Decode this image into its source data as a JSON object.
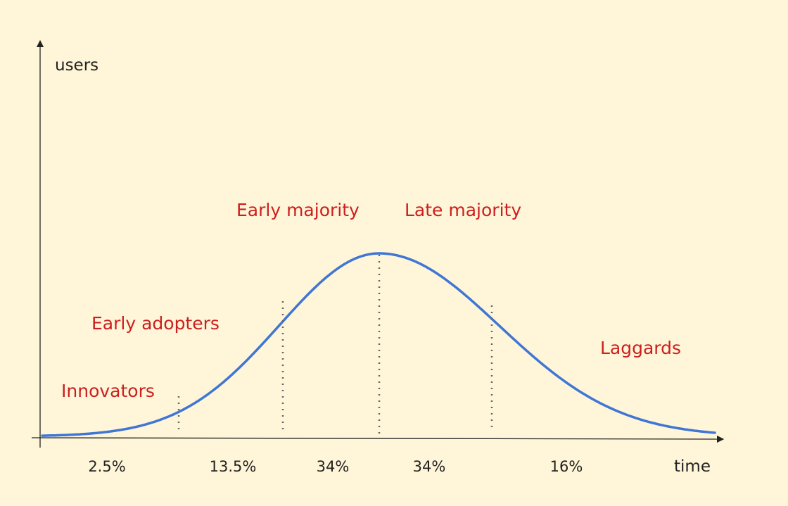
{
  "axes": {
    "y_label": "users",
    "x_label": "time"
  },
  "segments": [
    {
      "name": "Innovators",
      "share": "2.5%"
    },
    {
      "name": "Early adopters",
      "share": "13.5%"
    },
    {
      "name": "Early majority",
      "share": "34%"
    },
    {
      "name": "Late majority",
      "share": "34%"
    },
    {
      "name": "Laggards",
      "share": "16%"
    }
  ],
  "colors": {
    "background": "#fff5d8",
    "curve": "#3f76d6",
    "segment_labels": "#cc1f1f",
    "axis": "#222222",
    "dividers": "#666666"
  }
}
